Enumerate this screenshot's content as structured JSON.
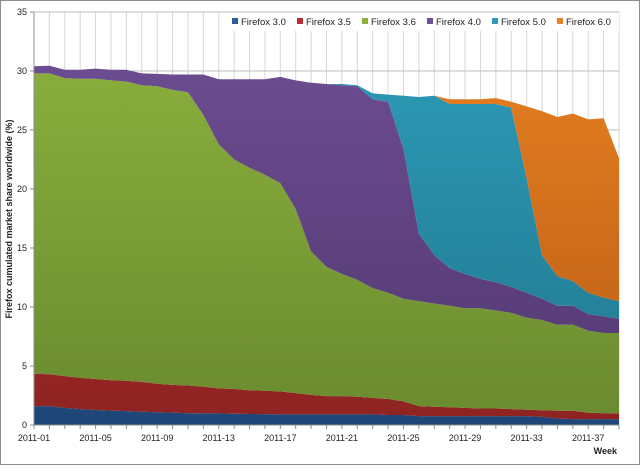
{
  "chart_data": {
    "type": "area",
    "stacked": true,
    "title": "",
    "xlabel": "Week",
    "ylabel": "Firefox cumulated market share worldwide (%)",
    "ylim": [
      0,
      35
    ],
    "yticks": [
      0,
      5,
      10,
      15,
      20,
      25,
      30,
      35
    ],
    "grid": true,
    "legend_position": "top-right",
    "x": [
      "2011-01",
      "2011-02",
      "2011-03",
      "2011-04",
      "2011-05",
      "2011-06",
      "2011-07",
      "2011-08",
      "2011-09",
      "2011-10",
      "2011-11",
      "2011-12",
      "2011-13",
      "2011-14",
      "2011-15",
      "2011-16",
      "2011-17",
      "2011-18",
      "2011-19",
      "2011-20",
      "2011-21",
      "2011-22",
      "2011-23",
      "2011-24",
      "2011-25",
      "2011-26",
      "2011-27",
      "2011-28",
      "2011-29",
      "2011-30",
      "2011-31",
      "2011-32",
      "2011-33",
      "2011-34",
      "2011-35",
      "2011-36",
      "2011-37",
      "2011-38",
      "2011-39"
    ],
    "xtick_labels": [
      "2011-01",
      "2011-05",
      "2011-09",
      "2011-13",
      "2011-17",
      "2011-21",
      "2011-25",
      "2011-29",
      "2011-33",
      "2011-37"
    ],
    "series": [
      {
        "name": "Firefox 3.0",
        "color": "#2c5d9a",
        "color_dark": "#1f4678",
        "values": [
          1.6,
          1.6,
          1.45,
          1.35,
          1.27,
          1.22,
          1.18,
          1.12,
          1.08,
          1.05,
          1.0,
          1.0,
          0.98,
          0.95,
          0.93,
          0.92,
          0.9,
          0.9,
          0.9,
          0.9,
          0.9,
          0.9,
          0.9,
          0.85,
          0.85,
          0.75,
          0.75,
          0.75,
          0.75,
          0.75,
          0.75,
          0.75,
          0.75,
          0.7,
          0.55,
          0.5,
          0.5,
          0.5,
          0.5
        ]
      },
      {
        "name": "Firefox 3.5",
        "color": "#b8302f",
        "color_dark": "#8e2322",
        "values": [
          2.74,
          2.7,
          2.69,
          2.65,
          2.63,
          2.58,
          2.57,
          2.53,
          2.42,
          2.35,
          2.35,
          2.25,
          2.12,
          2.1,
          2.02,
          1.98,
          1.95,
          1.8,
          1.65,
          1.55,
          1.55,
          1.5,
          1.4,
          1.35,
          1.15,
          0.85,
          0.8,
          0.75,
          0.7,
          0.65,
          0.65,
          0.6,
          0.55,
          0.55,
          0.65,
          0.7,
          0.55,
          0.5,
          0.5
        ]
      },
      {
        "name": "Firefox 3.6",
        "color": "#8db33e",
        "color_dark": "#6a8a2f",
        "values": [
          25.46,
          25.5,
          25.26,
          25.35,
          25.45,
          25.4,
          25.35,
          25.15,
          25.2,
          25.0,
          24.85,
          23.05,
          20.7,
          19.45,
          18.85,
          18.3,
          17.65,
          15.6,
          12.15,
          10.95,
          10.35,
          9.9,
          9.3,
          9.0,
          8.7,
          8.9,
          8.75,
          8.6,
          8.45,
          8.5,
          8.3,
          8.15,
          7.8,
          7.65,
          7.3,
          7.3,
          6.95,
          6.8,
          6.8
        ]
      },
      {
        "name": "Firefox 4.0",
        "color": "#6f4f95",
        "color_dark": "#523870",
        "values": [
          0.6,
          0.65,
          0.7,
          0.75,
          0.85,
          0.9,
          1.0,
          1.0,
          1.05,
          1.3,
          1.5,
          3.4,
          5.5,
          6.8,
          7.5,
          8.1,
          9.0,
          10.9,
          14.3,
          15.5,
          16.0,
          16.4,
          16.0,
          16.2,
          12.7,
          5.7,
          4.1,
          3.2,
          2.9,
          2.5,
          2.4,
          2.2,
          2.1,
          1.8,
          1.6,
          1.6,
          1.4,
          1.4,
          1.2
        ]
      },
      {
        "name": "Firefox 5.0",
        "color": "#2e9dba",
        "color_dark": "#21778e",
        "values": [
          0,
          0,
          0,
          0,
          0,
          0,
          0,
          0,
          0,
          0,
          0,
          0,
          0,
          0,
          0,
          0,
          0,
          0,
          0,
          0,
          0.1,
          0.1,
          0.5,
          0.6,
          4.5,
          11.6,
          13.5,
          13.9,
          14.4,
          14.8,
          15.1,
          15.2,
          9.7,
          3.7,
          2.5,
          2.1,
          1.8,
          1.6,
          1.5
        ]
      },
      {
        "name": "Firefox 6.0",
        "color": "#ea8222",
        "color_dark": "#b85d16",
        "values": [
          0,
          0,
          0,
          0,
          0,
          0,
          0,
          0,
          0,
          0,
          0,
          0,
          0,
          0,
          0,
          0,
          0,
          0,
          0,
          0,
          0,
          0,
          0,
          0,
          0,
          0,
          0,
          0.4,
          0.4,
          0.4,
          0.5,
          0.5,
          6.1,
          12.2,
          13.5,
          14.2,
          14.7,
          15.2,
          12.1
        ]
      }
    ]
  }
}
